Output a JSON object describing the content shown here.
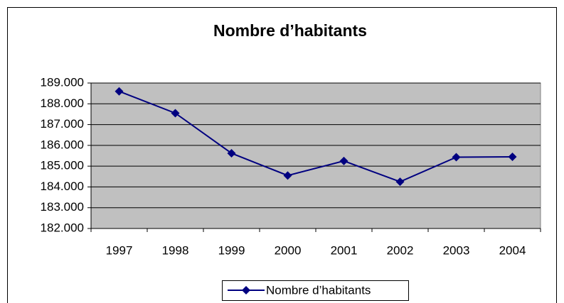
{
  "chart_data": {
    "type": "line",
    "title": "Nombre d’habitants",
    "categories": [
      "1997",
      "1998",
      "1999",
      "2000",
      "2001",
      "2002",
      "2003",
      "2004"
    ],
    "series": [
      {
        "name": "Nombre d’habitants",
        "color": "#000080",
        "values": [
          188600,
          187550,
          185620,
          184550,
          185250,
          184250,
          185430,
          185450
        ]
      }
    ],
    "ylim": [
      182000,
      189000
    ],
    "yticks": [
      {
        "value": 182000,
        "label": "182.000"
      },
      {
        "value": 183000,
        "label": "183.000"
      },
      {
        "value": 184000,
        "label": "184.000"
      },
      {
        "value": 185000,
        "label": "185.000"
      },
      {
        "value": 186000,
        "label": "186.000"
      },
      {
        "value": 187000,
        "label": "187.000"
      },
      {
        "value": 188000,
        "label": "188.000"
      },
      {
        "value": 189000,
        "label": "189.000"
      }
    ],
    "grid": true,
    "plot_background": "#c0c0c0",
    "legend": "bottom"
  }
}
